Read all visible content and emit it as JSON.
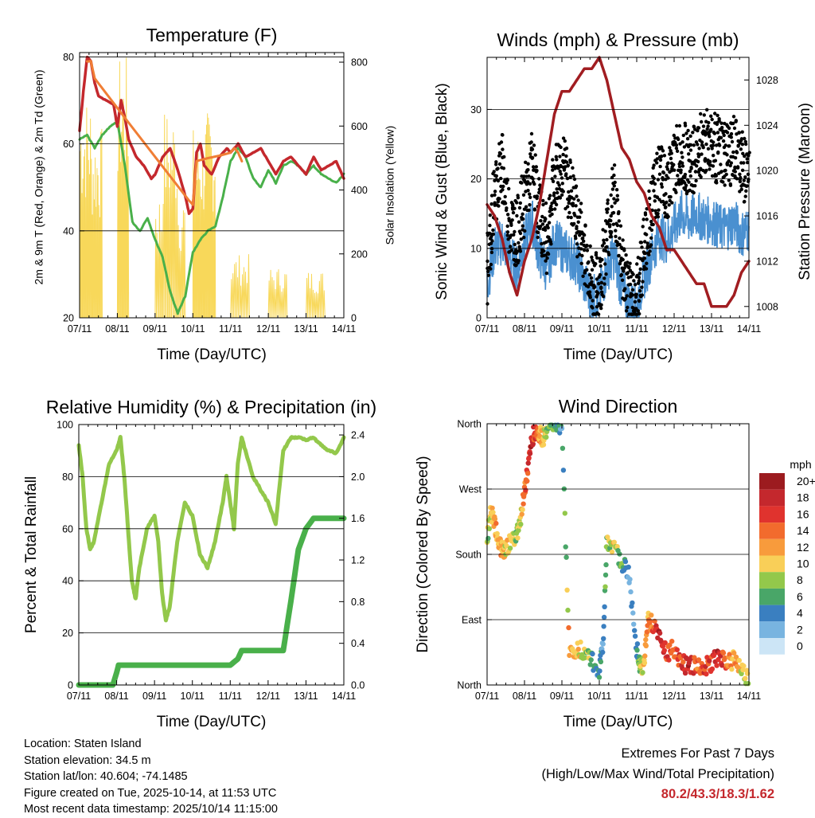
{
  "chart_data": [
    {
      "id": "temperature",
      "type": "line",
      "title": "Temperature (F)",
      "xlabel": "Time (Day/UTC)",
      "ylabel": "2m & 9m T (Red, Orange) & 2m Td (Green)",
      "ylabel_right": "Solar Insolation (Yellow)",
      "x_ticks": [
        "07/11",
        "08/11",
        "09/11",
        "10/11",
        "11/11",
        "12/11",
        "13/11",
        "14/11"
      ],
      "xlim": [
        0,
        7
      ],
      "ylim": [
        20,
        81
      ],
      "y_ticks": [
        20,
        40,
        60,
        80
      ],
      "ylim_right": [
        0,
        830
      ],
      "y_ticks_right": [
        0,
        200,
        400,
        600,
        800
      ],
      "series": [
        {
          "name": "2m T",
          "color": "#c4282d",
          "x": [
            0,
            0.1,
            0.2,
            0.3,
            0.4,
            0.5,
            0.7,
            0.9,
            1.0,
            1.1,
            1.2,
            1.3,
            1.5,
            1.7,
            1.9,
            2.0,
            2.2,
            2.4,
            2.6,
            2.8,
            2.9,
            3.0,
            3.1,
            3.2,
            3.3,
            3.5,
            3.7,
            3.9,
            4.0,
            4.2,
            4.4,
            4.6,
            4.8,
            5.0,
            5.2,
            5.4,
            5.6,
            5.8,
            6.0,
            6.2,
            6.4,
            6.6,
            6.8,
            7.0
          ],
          "y": [
            63,
            72,
            80,
            79,
            74,
            71,
            70,
            69,
            64,
            70,
            66,
            61,
            57,
            55,
            52,
            53,
            57,
            59,
            54,
            48,
            44,
            45,
            58,
            60,
            55,
            53,
            57,
            59,
            58,
            60,
            57,
            58,
            59,
            56,
            53,
            56,
            57,
            55,
            53,
            57,
            54,
            55,
            56,
            52
          ]
        },
        {
          "name": "9m T",
          "color": "#f07e35",
          "x": [
            0.2,
            0.3,
            0.4,
            2.9,
            3.0,
            3.1,
            4.0,
            4.1,
            4.2,
            4.3
          ],
          "y": [
            79,
            79,
            75,
            47,
            46,
            56,
            58,
            59,
            58,
            56
          ]
        },
        {
          "name": "2m Td",
          "color": "#49b04a",
          "x": [
            0,
            0.2,
            0.4,
            0.6,
            0.8,
            1.0,
            1.2,
            1.4,
            1.6,
            1.8,
            2.0,
            2.2,
            2.4,
            2.6,
            2.8,
            3.0,
            3.2,
            3.4,
            3.6,
            3.8,
            4.0,
            4.2,
            4.4,
            4.6,
            4.8,
            5.0,
            5.2,
            5.4,
            5.6,
            5.8,
            6.0,
            6.2,
            6.4,
            6.6,
            6.8,
            7.0
          ],
          "y": [
            61,
            62,
            59,
            62,
            64,
            65,
            55,
            42,
            40,
            43,
            38,
            34,
            26,
            21,
            25,
            35,
            38,
            40,
            41,
            48,
            56,
            59,
            57,
            52,
            50,
            54,
            51,
            55,
            56,
            55,
            53,
            55,
            53,
            52,
            51,
            53
          ]
        },
        {
          "name": "Solar Insolation",
          "axis": "right",
          "color": "#f8d85a",
          "x": [
            0,
            0.15,
            0.3,
            0.45,
            0.6,
            1.0,
            1.15,
            1.3,
            1.45,
            1.6,
            2.0,
            2.2,
            2.4,
            2.6,
            2.8,
            3.0,
            3.15,
            3.3,
            3.45,
            3.6,
            4.0,
            4.25,
            4.5,
            4.75,
            5.0,
            5.25,
            5.5,
            5.75,
            6.0,
            6.25,
            6.5,
            6.75,
            7.0
          ],
          "y": [
            0,
            700,
            200,
            600,
            0,
            0,
            820,
            0,
            0,
            0,
            0,
            400,
            660,
            400,
            0,
            0,
            600,
            0,
            650,
            0,
            0,
            200,
            0,
            0,
            0,
            160,
            0,
            0,
            0,
            150,
            0,
            0,
            0
          ]
        }
      ]
    },
    {
      "id": "winds",
      "type": "scatter",
      "title": "Winds (mph) & Pressure (mb)",
      "xlabel": "Time (Day/UTC)",
      "ylabel": "Sonic Wind & Gust (Blue, Black)",
      "ylabel_right": "Station Pressure (Maroon)",
      "x_ticks": [
        "07/11",
        "08/11",
        "09/11",
        "10/11",
        "11/11",
        "12/11",
        "13/11",
        "14/11"
      ],
      "xlim": [
        0,
        7
      ],
      "ylim": [
        0,
        37.5
      ],
      "y_ticks": [
        0,
        10,
        20,
        30
      ],
      "ylim_right": [
        1007,
        1030
      ],
      "y_ticks_right": [
        1008,
        1012,
        1016,
        1020,
        1024,
        1028
      ],
      "series": [
        {
          "name": "Gust",
          "color": "#000000",
          "marker": "dot",
          "x": [
            0,
            0.2,
            0.4,
            0.6,
            0.8,
            1.0,
            1.2,
            1.4,
            1.6,
            1.8,
            2.0,
            2.2,
            2.4,
            2.6,
            2.8,
            3.0,
            3.2,
            3.4,
            3.6,
            3.8,
            4.0,
            4.2,
            4.4,
            4.6,
            4.8,
            5.0,
            5.2,
            5.4,
            5.6,
            5.8,
            6.0,
            6.2,
            6.4,
            6.6,
            6.8,
            7.0
          ],
          "y": [
            6,
            18,
            22,
            14,
            12,
            17,
            22,
            15,
            11,
            20,
            22,
            19,
            14,
            10,
            5,
            4,
            12,
            18,
            8,
            3,
            3,
            10,
            16,
            20,
            19,
            22,
            24,
            22,
            23,
            26,
            25,
            24,
            23,
            24,
            22,
            21
          ]
        },
        {
          "name": "Sonic Wind",
          "color": "#4a90d0",
          "marker": "line",
          "x": [
            0,
            0.2,
            0.4,
            0.6,
            0.8,
            1.0,
            1.2,
            1.4,
            1.6,
            1.8,
            2.0,
            2.2,
            2.4,
            2.6,
            2.8,
            3.0,
            3.2,
            3.4,
            3.6,
            3.8,
            4.0,
            4.2,
            4.4,
            4.6,
            4.8,
            5.0,
            5.2,
            5.4,
            5.6,
            5.8,
            6.0,
            6.2,
            6.4,
            6.6,
            6.8,
            7.0
          ],
          "y": [
            5,
            10,
            11,
            9,
            7,
            11,
            14,
            9,
            7,
            11,
            10,
            9,
            8,
            5,
            3,
            3,
            7,
            9,
            4,
            2,
            2,
            6,
            9,
            12,
            11,
            13,
            15,
            14,
            15,
            14,
            14,
            13,
            13,
            14,
            12,
            13
          ]
        },
        {
          "name": "Pressure",
          "axis": "right",
          "color": "#a11d21",
          "marker": "line",
          "x": [
            0,
            0.2,
            0.4,
            0.6,
            0.8,
            1.0,
            1.2,
            1.4,
            1.6,
            1.8,
            2.0,
            2.2,
            2.4,
            2.6,
            2.8,
            3.0,
            3.2,
            3.4,
            3.6,
            3.8,
            4.0,
            4.2,
            4.4,
            4.6,
            4.8,
            5.0,
            5.2,
            5.4,
            5.6,
            5.8,
            6.0,
            6.2,
            6.4,
            6.6,
            6.8,
            7.0
          ],
          "y": [
            1017,
            1016,
            1014,
            1011,
            1009,
            1012,
            1014,
            1017,
            1021,
            1025,
            1027,
            1027,
            1028,
            1029,
            1029,
            1030,
            1028,
            1025,
            1022,
            1021,
            1019,
            1018,
            1016,
            1015,
            1013,
            1013,
            1012,
            1011,
            1010,
            1010,
            1008,
            1008,
            1008,
            1009,
            1011,
            1012
          ]
        }
      ]
    },
    {
      "id": "humidity",
      "type": "line",
      "title": "Relative Humidity (%) & Precipitation (in)",
      "xlabel": "Time (Day/UTC)",
      "ylabel": "Percent & Total Rainfall",
      "x_ticks": [
        "07/11",
        "08/11",
        "09/11",
        "10/11",
        "11/11",
        "12/11",
        "13/11",
        "14/11"
      ],
      "xlim": [
        0,
        7
      ],
      "ylim": [
        0,
        100
      ],
      "y_ticks": [
        0,
        20,
        40,
        60,
        80,
        100
      ],
      "ylim_right": [
        0,
        2.5
      ],
      "y_ticks_right": [
        0.0,
        0.4,
        0.8,
        1.2,
        1.6,
        2.0,
        2.4
      ],
      "series": [
        {
          "name": "Relative Humidity",
          "color": "#93c84b",
          "x": [
            0,
            0.1,
            0.2,
            0.3,
            0.4,
            0.6,
            0.8,
            1.0,
            1.1,
            1.2,
            1.3,
            1.4,
            1.5,
            1.6,
            1.8,
            2.0,
            2.1,
            2.2,
            2.3,
            2.4,
            2.6,
            2.8,
            3.0,
            3.2,
            3.4,
            3.6,
            3.8,
            3.9,
            4.0,
            4.1,
            4.2,
            4.3,
            4.4,
            4.6,
            4.8,
            5.0,
            5.2,
            5.4,
            5.6,
            5.8,
            6.0,
            6.2,
            6.4,
            6.6,
            6.8,
            7.0
          ],
          "y": [
            92,
            80,
            60,
            52,
            55,
            70,
            85,
            90,
            95,
            80,
            60,
            40,
            33,
            45,
            60,
            65,
            55,
            35,
            25,
            30,
            55,
            70,
            65,
            50,
            45,
            55,
            70,
            80,
            70,
            60,
            85,
            95,
            90,
            80,
            75,
            70,
            62,
            90,
            95,
            95,
            94,
            95,
            92,
            90,
            89,
            95
          ]
        },
        {
          "name": "Total Precipitation",
          "axis": "right",
          "color": "#49b04a",
          "x": [
            0,
            0.9,
            1.0,
            1.05,
            2.0,
            3.0,
            4.0,
            4.2,
            4.3,
            5.0,
            5.4,
            5.6,
            5.8,
            6.0,
            6.2,
            6.5,
            7.0
          ],
          "y": [
            0,
            0,
            0.12,
            0.19,
            0.19,
            0.19,
            0.19,
            0.25,
            0.33,
            0.33,
            0.33,
            0.8,
            1.3,
            1.5,
            1.6,
            1.6,
            1.6
          ]
        }
      ]
    },
    {
      "id": "wind-direction",
      "type": "scatter",
      "title": "Wind Direction",
      "xlabel": "Time (Day/UTC)",
      "ylabel": "Direction (Colored By Speed)",
      "x_ticks": [
        "07/11",
        "08/11",
        "09/11",
        "10/11",
        "11/11",
        "12/11",
        "13/11",
        "14/11"
      ],
      "xlim": [
        0,
        7
      ],
      "ylim": [
        0,
        360
      ],
      "y_ticks": [
        "North",
        "East",
        "South",
        "West",
        "North"
      ],
      "legend_title": "mph",
      "legend_labels": [
        "20+",
        "18",
        "16",
        "14",
        "12",
        "10",
        "8",
        "6",
        "4",
        "2",
        "0"
      ],
      "legend_colors": [
        "#9c1b1f",
        "#c4282d",
        "#e0332e",
        "#f26b2d",
        "#f89b3c",
        "#f9cf58",
        "#93c84b",
        "#49a668",
        "#3a7fc0",
        "#78b4e0",
        "#cce5f6"
      ],
      "series": [
        {
          "name": "Direction",
          "color_by": "speed",
          "x": [
            0,
            0.1,
            0.2,
            0.3,
            0.4,
            0.5,
            0.7,
            0.8,
            0.9,
            1.0,
            1.1,
            1.2,
            1.3,
            1.4,
            1.5,
            1.6,
            1.8,
            2.0,
            2.2,
            2.4,
            2.6,
            2.8,
            3.0,
            3.1,
            3.2,
            3.4,
            3.6,
            3.8,
            4.0,
            4.1,
            4.2,
            4.3,
            4.4,
            4.6,
            4.8,
            5.0,
            5.2,
            5.4,
            5.6,
            5.8,
            6.0,
            6.2,
            6.4,
            6.6,
            6.8,
            7.0
          ],
          "y": [
            200,
            240,
            220,
            200,
            185,
            190,
            200,
            210,
            230,
            270,
            300,
            340,
            350,
            345,
            340,
            355,
            355,
            355,
            40,
            50,
            45,
            35,
            20,
            55,
            200,
            185,
            170,
            150,
            50,
            25,
            30,
            90,
            85,
            70,
            45,
            50,
            30,
            25,
            30,
            25,
            30,
            40,
            30,
            35,
            20,
            5
          ],
          "speed": [
            8,
            10,
            12,
            11,
            12,
            10,
            9,
            8,
            10,
            14,
            16,
            18,
            15,
            12,
            10,
            8,
            6,
            4,
            12,
            10,
            9,
            6,
            4,
            3,
            8,
            10,
            6,
            2,
            4,
            8,
            10,
            12,
            14,
            18,
            16,
            14,
            16,
            18,
            14,
            16,
            16,
            18,
            14,
            12,
            10,
            8
          ]
        }
      ]
    }
  ],
  "info": {
    "location": "Location: Staten Island",
    "elevation": "Station elevation: 34.5 m",
    "latlon": "Station lat/lon: 40.604; -74.1485",
    "created": "Figure created on Tue, 2025-10-14, at 11:53 UTC",
    "recent": "Most recent data timestamp: 2025/10/14 11:15:00"
  },
  "extremes": {
    "title": "Extremes For Past 7 Days",
    "subtitle": "(High/Low/Max Wind/Total Precipitation)",
    "value": "80.2/43.3/18.3/1.62"
  }
}
